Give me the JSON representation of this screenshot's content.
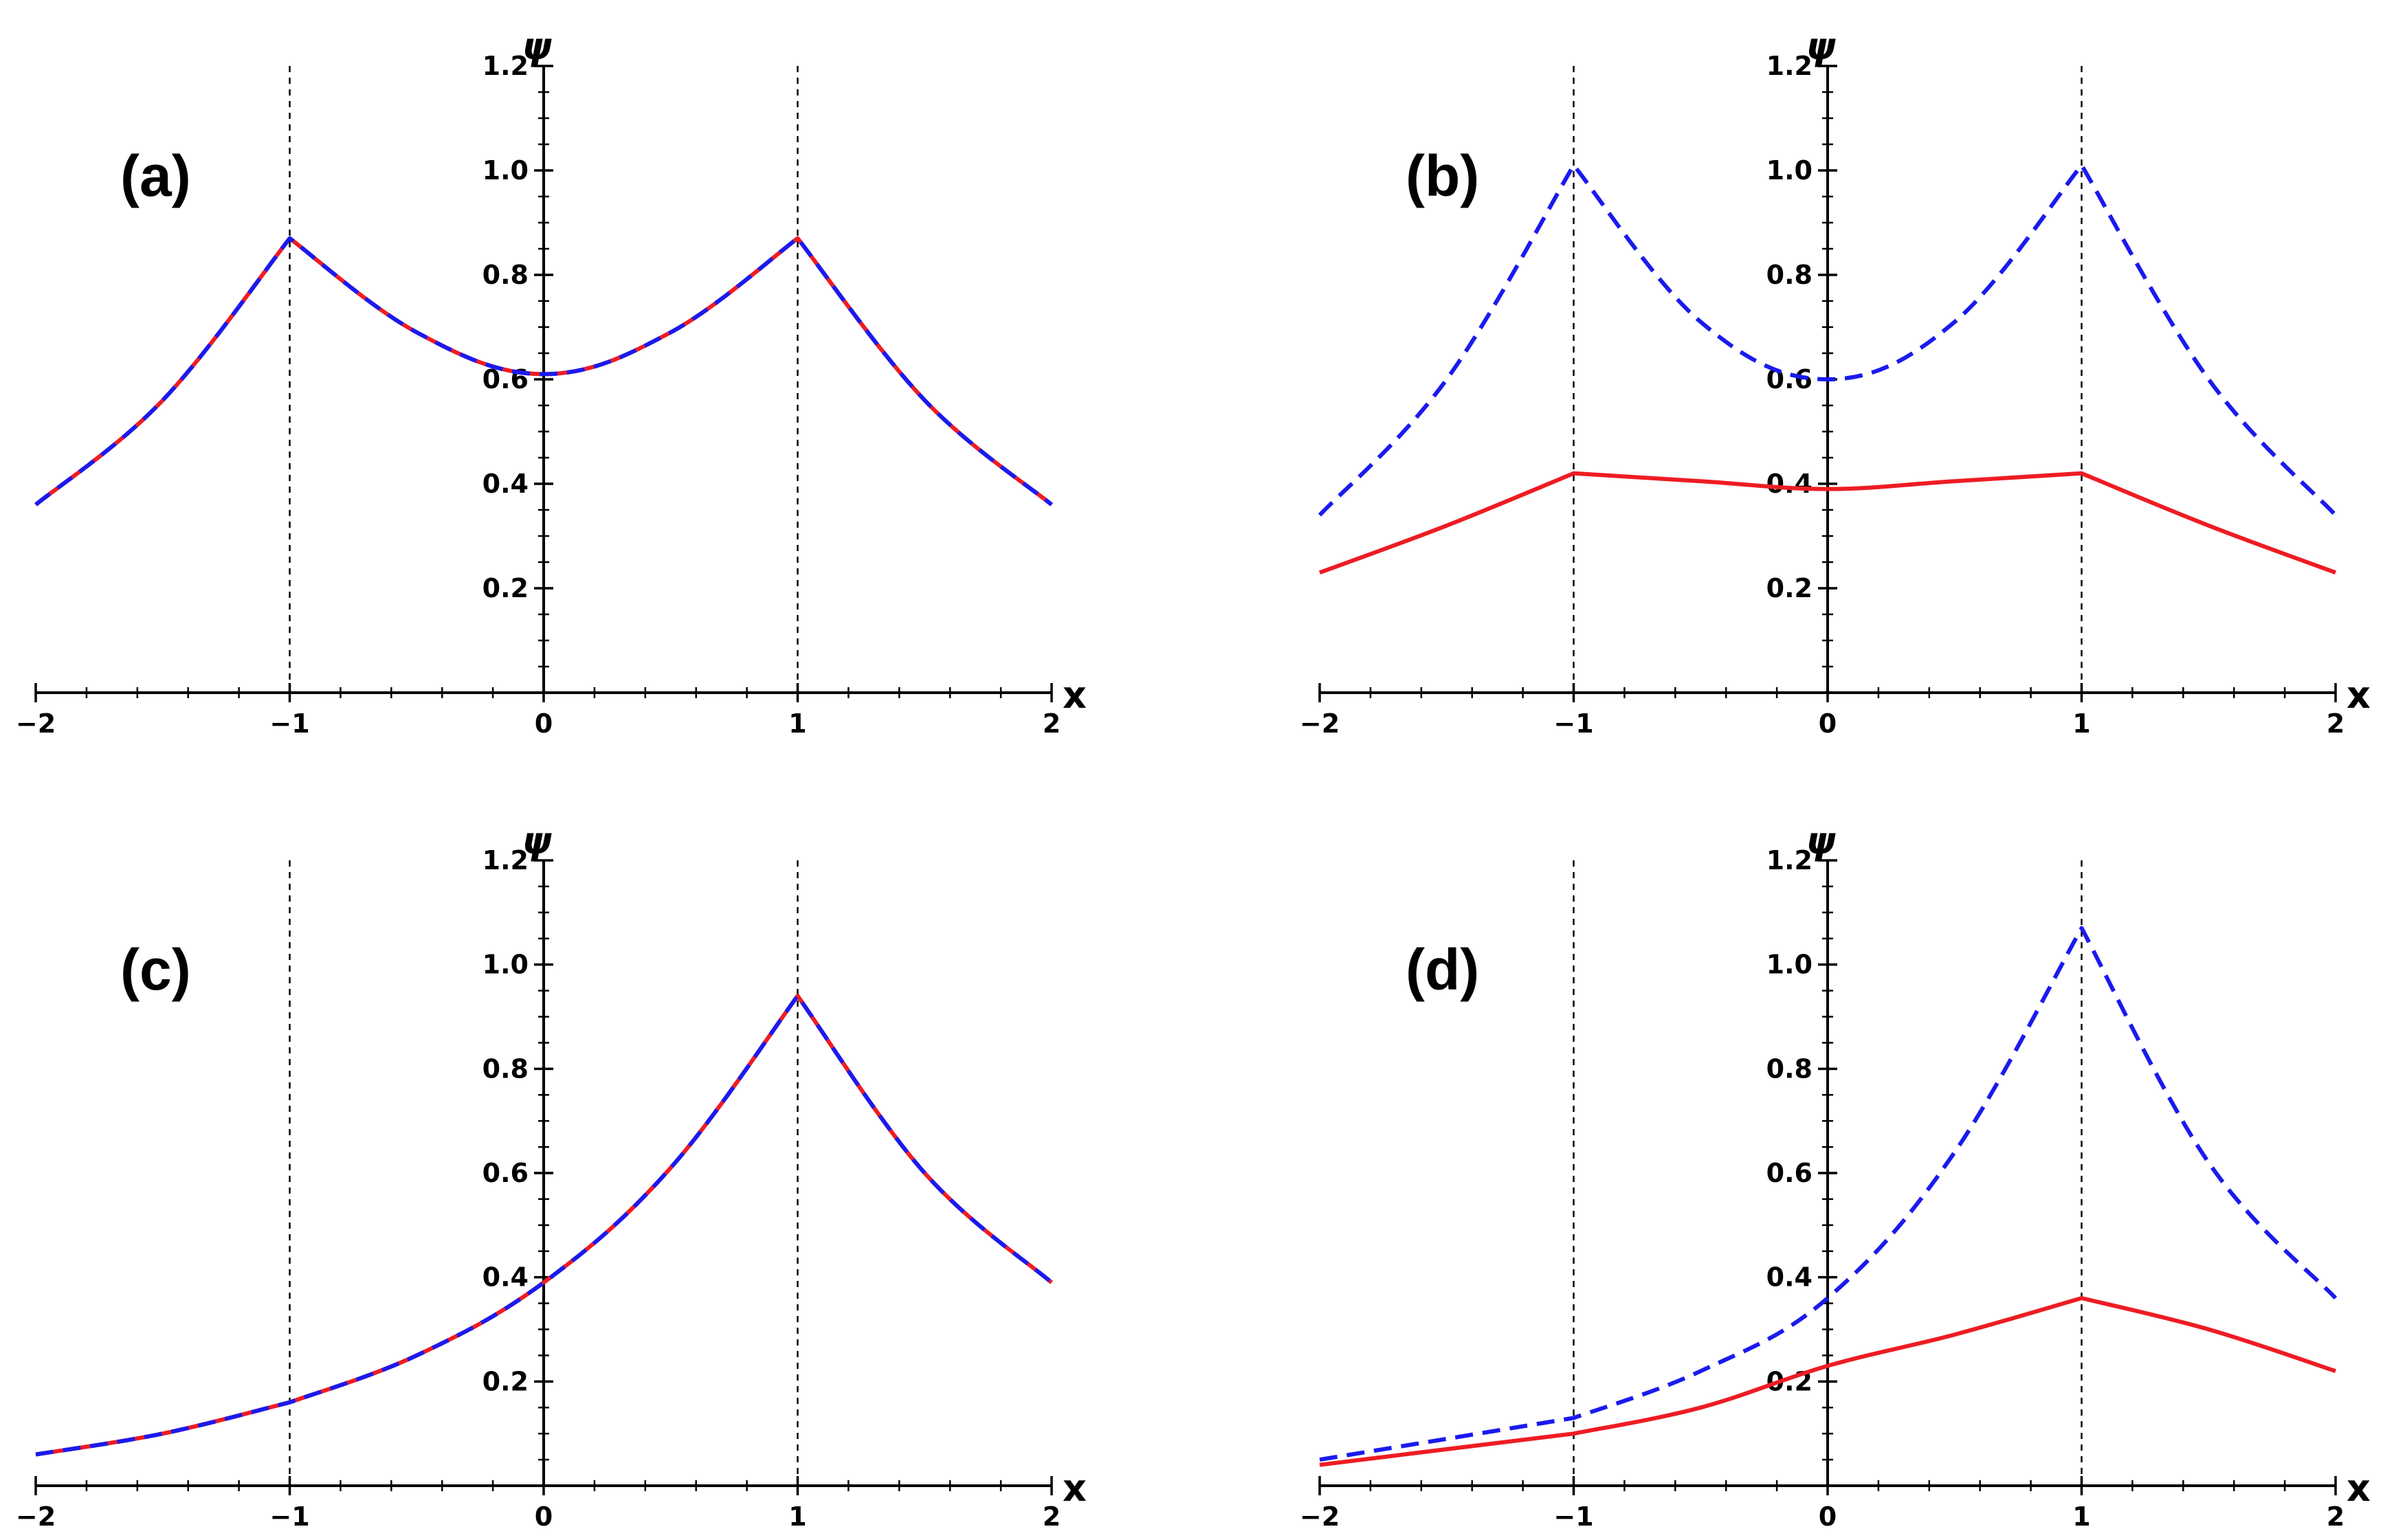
{
  "chart_data": [
    {
      "type": "line",
      "panel_label": "(a)",
      "xlabel": "x",
      "ylabel": "ψ",
      "xlim": [
        -2,
        2
      ],
      "ylim": [
        0,
        1.2
      ],
      "x_ticks": [
        "-2",
        "-1",
        "0",
        "1",
        "2"
      ],
      "y_ticks": [
        "0.2",
        "0.4",
        "0.6",
        "0.8",
        "1.0",
        "1.2"
      ],
      "guides": [
        -1,
        1
      ],
      "colors": {
        "red": "#ee1c24",
        "blue": "#1a1aee"
      },
      "series": [
        {
          "name": "red",
          "style": "solid",
          "color": "#ee1c24",
          "x": [
            -2,
            -1.5,
            -1,
            -0.5,
            0,
            0.5,
            1,
            1.5,
            2
          ],
          "values": [
            0.36,
            0.56,
            0.87,
            0.69,
            0.61,
            0.69,
            0.87,
            0.56,
            0.36
          ]
        },
        {
          "name": "blue",
          "style": "dashed",
          "color": "#1a1aee",
          "x": [
            -2,
            -1.5,
            -1,
            -0.5,
            0,
            0.5,
            1,
            1.5,
            2
          ],
          "values": [
            0.36,
            0.56,
            0.87,
            0.69,
            0.61,
            0.69,
            0.87,
            0.56,
            0.36
          ]
        }
      ]
    },
    {
      "type": "line",
      "panel_label": "(b)",
      "xlabel": "x",
      "ylabel": "ψ",
      "xlim": [
        -2,
        2
      ],
      "ylim": [
        0,
        1.2
      ],
      "x_ticks": [
        "-2",
        "-1",
        "0",
        "1",
        "2"
      ],
      "y_ticks": [
        "0.2",
        "0.4",
        "0.6",
        "0.8",
        "1.0",
        "1.2"
      ],
      "guides": [
        -1,
        1
      ],
      "colors": {
        "red": "#ee1c24",
        "blue": "#1a1aee"
      },
      "series": [
        {
          "name": "red",
          "style": "solid",
          "color": "#ee1c24",
          "x": [
            -2,
            -1.5,
            -1,
            -0.5,
            0,
            0.5,
            1,
            1.5,
            2
          ],
          "values": [
            0.23,
            0.32,
            0.42,
            0.405,
            0.39,
            0.405,
            0.42,
            0.32,
            0.23
          ]
        },
        {
          "name": "blue",
          "style": "dashed",
          "color": "#1a1aee",
          "x": [
            -2,
            -1.5,
            -1,
            -0.5,
            0,
            0.5,
            1,
            1.5,
            2
          ],
          "values": [
            0.34,
            0.6,
            1.01,
            0.71,
            0.6,
            0.71,
            1.01,
            0.6,
            0.34
          ]
        }
      ]
    },
    {
      "type": "line",
      "panel_label": "(c)",
      "xlabel": "x",
      "ylabel": "ψ",
      "xlim": [
        -2,
        2
      ],
      "ylim": [
        0,
        1.2
      ],
      "x_ticks": [
        "-2",
        "-1",
        "0",
        "1",
        "2"
      ],
      "y_ticks": [
        "0.2",
        "0.4",
        "0.6",
        "0.8",
        "1.0",
        "1.2"
      ],
      "guides": [
        -1,
        1
      ],
      "colors": {
        "red": "#ee1c24",
        "blue": "#1a1aee"
      },
      "series": [
        {
          "name": "red",
          "style": "solid",
          "color": "#ee1c24",
          "x": [
            -2,
            -1.5,
            -1,
            -0.5,
            0,
            0.5,
            1,
            1.5,
            2
          ],
          "values": [
            0.06,
            0.1,
            0.16,
            0.25,
            0.39,
            0.61,
            0.94,
            0.6,
            0.39
          ]
        },
        {
          "name": "blue",
          "style": "dashed",
          "color": "#1a1aee",
          "x": [
            -2,
            -1.5,
            -1,
            -0.5,
            0,
            0.5,
            1,
            1.5,
            2
          ],
          "values": [
            0.06,
            0.1,
            0.16,
            0.25,
            0.39,
            0.61,
            0.94,
            0.6,
            0.39
          ]
        }
      ]
    },
    {
      "type": "line",
      "panel_label": "(d)",
      "xlabel": "x",
      "ylabel": "ψ",
      "xlim": [
        -2,
        2
      ],
      "ylim": [
        0,
        1.2
      ],
      "x_ticks": [
        "-2",
        "-1",
        "0",
        "1",
        "2"
      ],
      "y_ticks": [
        "0.2",
        "0.4",
        "0.6",
        "0.8",
        "1.0",
        "1.2"
      ],
      "guides": [
        -1,
        1
      ],
      "colors": {
        "red": "#ee1c24",
        "blue": "#1a1aee"
      },
      "series": [
        {
          "name": "red",
          "style": "solid",
          "color": "#ee1c24",
          "x": [
            -2,
            -1.5,
            -1,
            -0.5,
            0,
            0.5,
            1,
            1.5,
            2
          ],
          "values": [
            0.04,
            0.07,
            0.1,
            0.15,
            0.23,
            0.29,
            0.36,
            0.3,
            0.22
          ]
        },
        {
          "name": "blue",
          "style": "dashed",
          "color": "#1a1aee",
          "x": [
            -2,
            -1.5,
            -1,
            -0.5,
            0,
            0.5,
            1,
            1.5,
            2
          ],
          "values": [
            0.05,
            0.09,
            0.13,
            0.22,
            0.36,
            0.64,
            1.07,
            0.62,
            0.36
          ]
        }
      ]
    }
  ]
}
